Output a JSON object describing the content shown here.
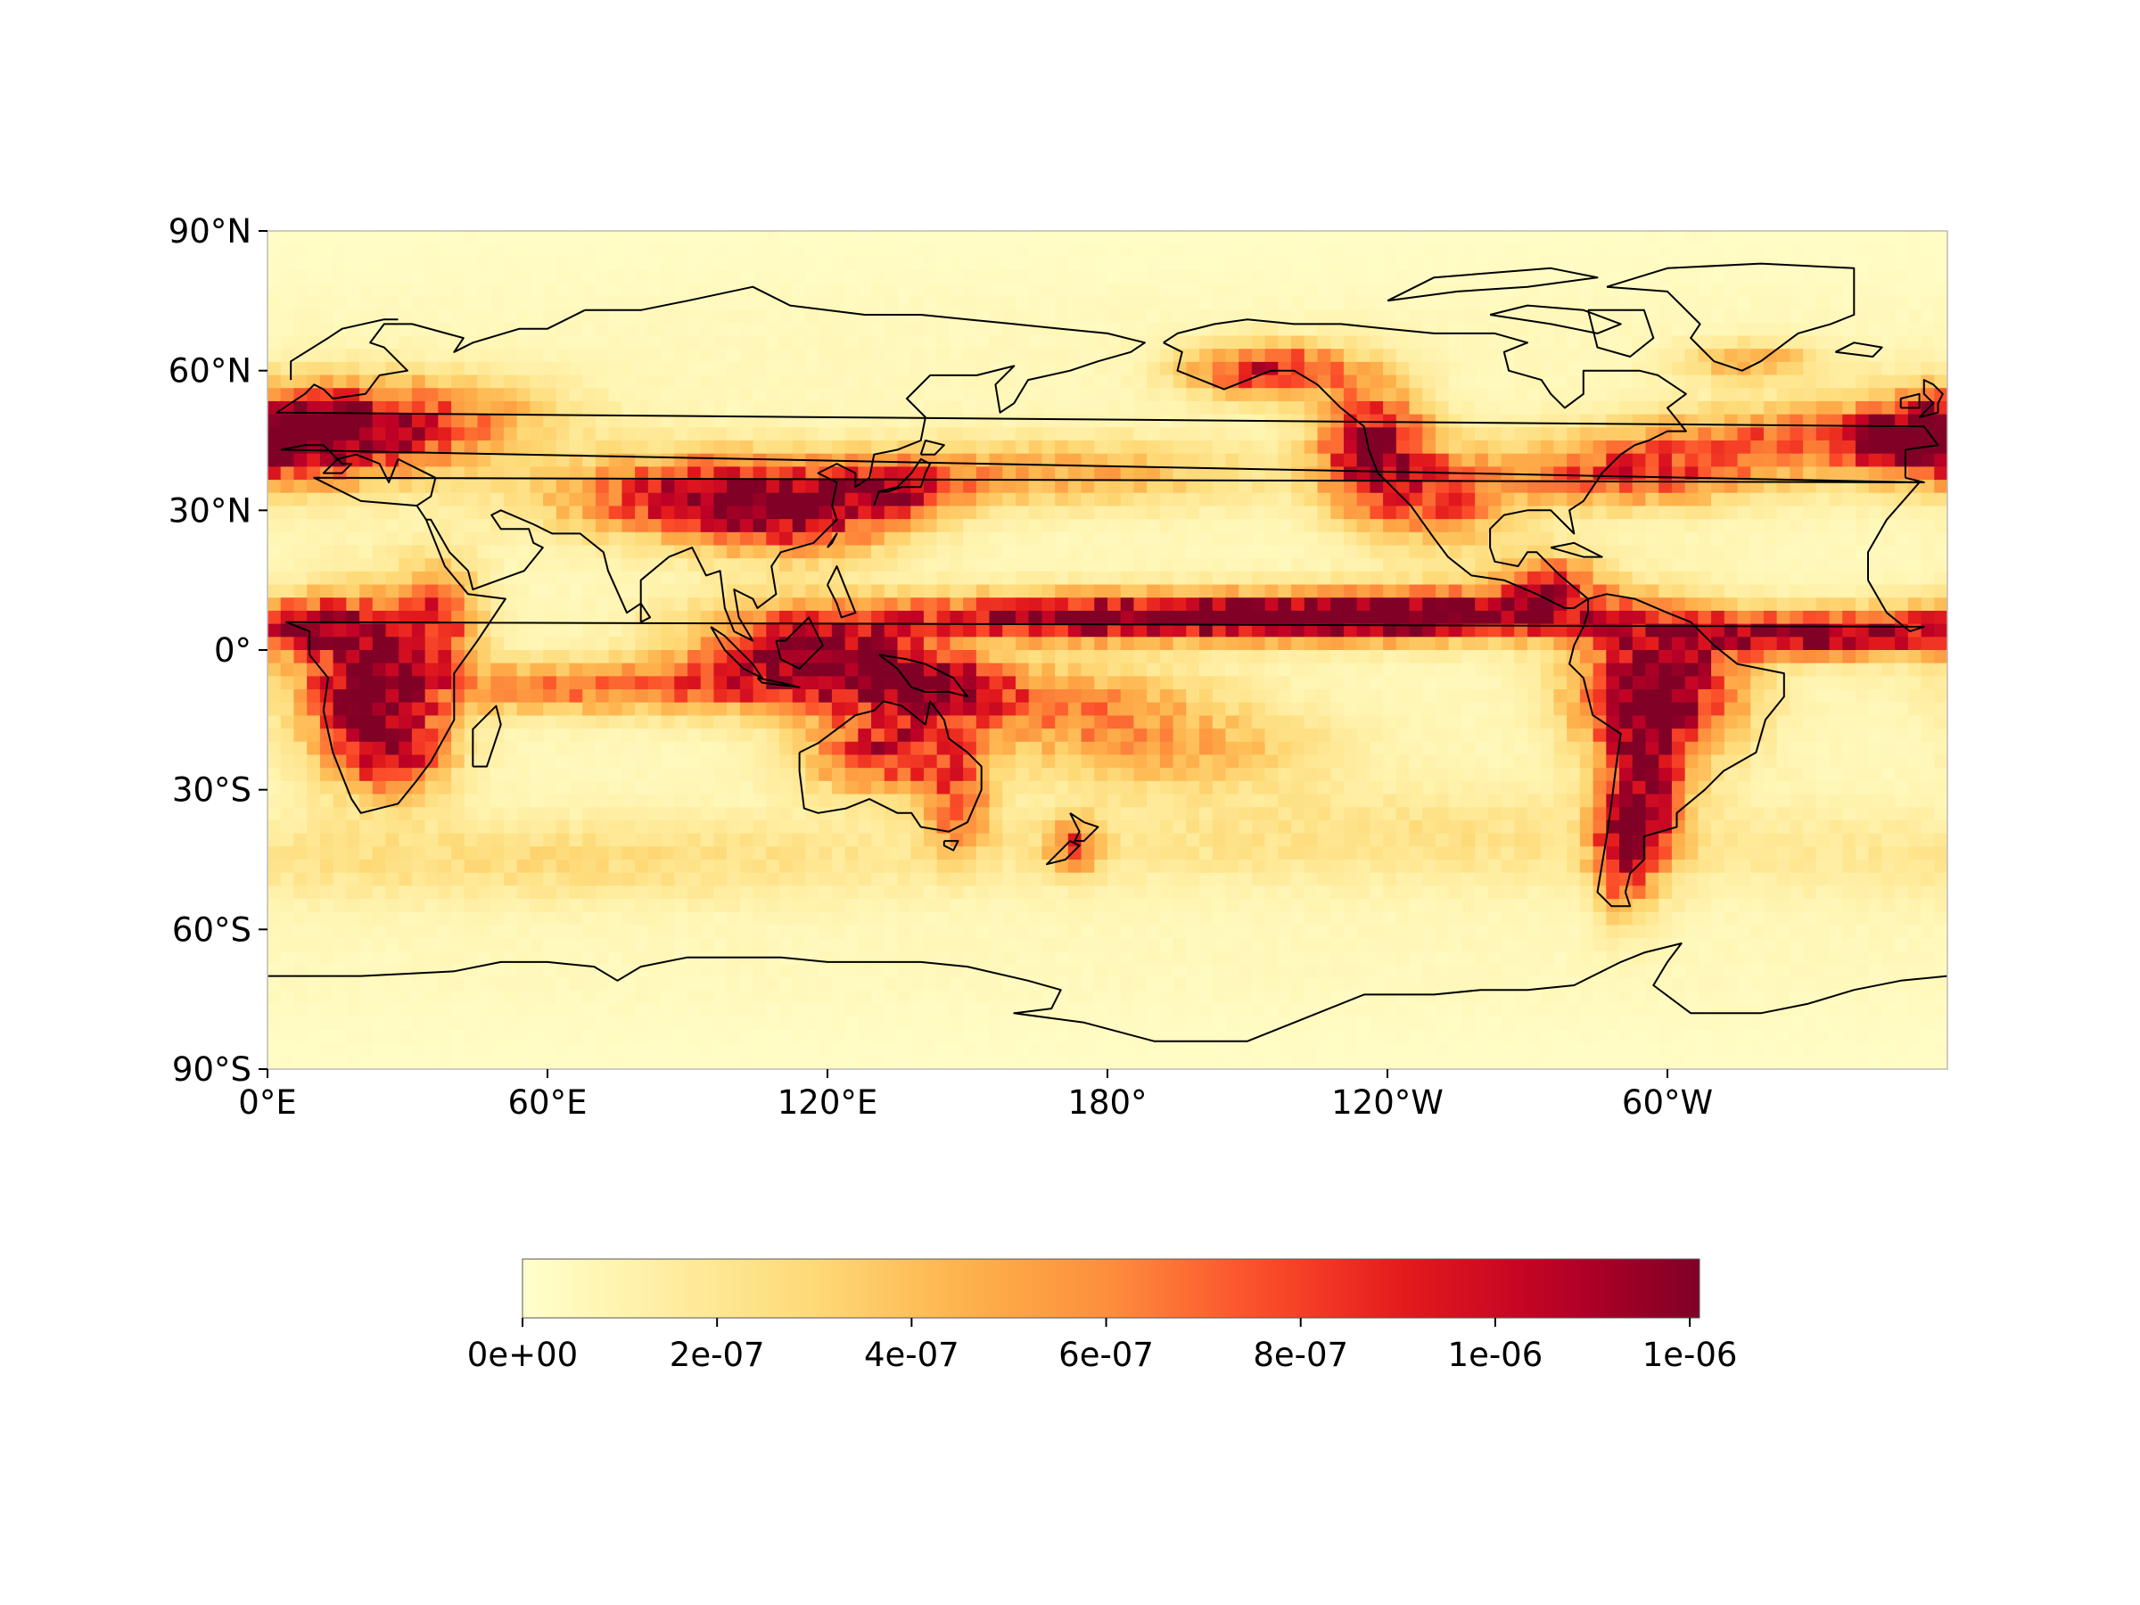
{
  "map": {
    "projection": "plate-carree",
    "central_longitude": 180,
    "field_description_visible": false,
    "colormap": {
      "name": "YlOrRd",
      "stops": [
        "#ffffcc",
        "#ffeda0",
        "#fed976",
        "#feb24c",
        "#fd8d3c",
        "#fc4e2a",
        "#e31a1c",
        "#bd0026",
        "#800026"
      ]
    },
    "coastline_color": "#000000",
    "y_ticks": [
      {
        "lat": 90,
        "label": "90°N"
      },
      {
        "lat": 60,
        "label": "60°N"
      },
      {
        "lat": 30,
        "label": "30°N"
      },
      {
        "lat": 0,
        "label": "0°"
      },
      {
        "lat": -30,
        "label": "30°S"
      },
      {
        "lat": -60,
        "label": "60°S"
      },
      {
        "lat": -90,
        "label": "90°S"
      }
    ],
    "x_ticks": [
      {
        "lon": 0,
        "label": "0°E"
      },
      {
        "lon": 60,
        "label": "60°E"
      },
      {
        "lon": 120,
        "label": "120°E"
      },
      {
        "lon": 180,
        "label": "180°"
      },
      {
        "lon": 240,
        "label": "120°W"
      },
      {
        "lon": 300,
        "label": "60°W"
      }
    ],
    "high_intensity_regions": [
      "Central Africa",
      "Europe",
      "Tibetan Plateau / South China",
      "Maritime Continent",
      "Australia",
      "Pacific ITCZ",
      "Northwest North America",
      "South America",
      "North Atlantic storm track"
    ]
  },
  "colorbar": {
    "vmin": 0,
    "vmax": 1.21e-06,
    "ticks": [
      {
        "value": 0,
        "label": "0e+00"
      },
      {
        "value": 2e-07,
        "label": "2e-07"
      },
      {
        "value": 4e-07,
        "label": "4e-07"
      },
      {
        "value": 6e-07,
        "label": "6e-07"
      },
      {
        "value": 8e-07,
        "label": "8e-07"
      },
      {
        "value": 1e-06,
        "label": "1e-06"
      },
      {
        "value": 1.2e-06,
        "label": "1e-06"
      }
    ]
  }
}
